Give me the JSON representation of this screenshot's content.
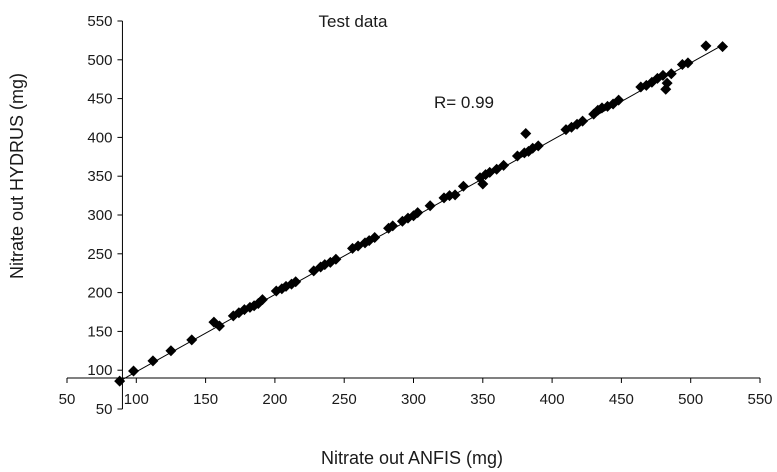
{
  "chart_data": {
    "type": "scatter",
    "title": "Test data",
    "xlabel": "Nitrate out ANFIS (mg)",
    "ylabel": "Nitrate out HYDRUS (mg)",
    "annotation": "R= 0.99",
    "xlim": [
      50,
      550
    ],
    "ylim": [
      50,
      550
    ],
    "xticks": [
      50,
      100,
      150,
      200,
      250,
      300,
      350,
      400,
      450,
      500,
      550
    ],
    "yticks": [
      50,
      100,
      150,
      200,
      250,
      300,
      350,
      400,
      450,
      500,
      550
    ],
    "grid": false,
    "legend": false,
    "marker": "diamond",
    "marker_color": "#000000",
    "trendline": {
      "type": "linear",
      "x": [
        88,
        524
      ],
      "y": [
        86,
        520
      ]
    },
    "points": [
      [
        88,
        86
      ],
      [
        98,
        99
      ],
      [
        112,
        112
      ],
      [
        125,
        125
      ],
      [
        140,
        139
      ],
      [
        156,
        162
      ],
      [
        160,
        157
      ],
      [
        170,
        170
      ],
      [
        174,
        174
      ],
      [
        178,
        178
      ],
      [
        182,
        181
      ],
      [
        185,
        183
      ],
      [
        188,
        186
      ],
      [
        191,
        191
      ],
      [
        201,
        202
      ],
      [
        205,
        205
      ],
      [
        208,
        208
      ],
      [
        212,
        211
      ],
      [
        215,
        214
      ],
      [
        228,
        228
      ],
      [
        233,
        233
      ],
      [
        236,
        236
      ],
      [
        240,
        239
      ],
      [
        244,
        243
      ],
      [
        256,
        257
      ],
      [
        260,
        260
      ],
      [
        265,
        264
      ],
      [
        268,
        267
      ],
      [
        272,
        271
      ],
      [
        282,
        283
      ],
      [
        285,
        286
      ],
      [
        292,
        292
      ],
      [
        296,
        296
      ],
      [
        300,
        299
      ],
      [
        303,
        303
      ],
      [
        312,
        312
      ],
      [
        322,
        322
      ],
      [
        326,
        325
      ],
      [
        330,
        326
      ],
      [
        336,
        337
      ],
      [
        348,
        348
      ],
      [
        350,
        340
      ],
      [
        352,
        352
      ],
      [
        355,
        355
      ],
      [
        360,
        359
      ],
      [
        365,
        364
      ],
      [
        375,
        376
      ],
      [
        380,
        380
      ],
      [
        381,
        405
      ],
      [
        383,
        382
      ],
      [
        386,
        386
      ],
      [
        390,
        389
      ],
      [
        410,
        410
      ],
      [
        414,
        413
      ],
      [
        418,
        417
      ],
      [
        422,
        421
      ],
      [
        430,
        430
      ],
      [
        433,
        435
      ],
      [
        436,
        438
      ],
      [
        440,
        440
      ],
      [
        444,
        443
      ],
      [
        448,
        448
      ],
      [
        464,
        465
      ],
      [
        468,
        467
      ],
      [
        472,
        471
      ],
      [
        476,
        476
      ],
      [
        480,
        480
      ],
      [
        482,
        462
      ],
      [
        483,
        470
      ],
      [
        486,
        482
      ],
      [
        494,
        494
      ],
      [
        498,
        496
      ],
      [
        511,
        518
      ],
      [
        523,
        517
      ]
    ]
  }
}
